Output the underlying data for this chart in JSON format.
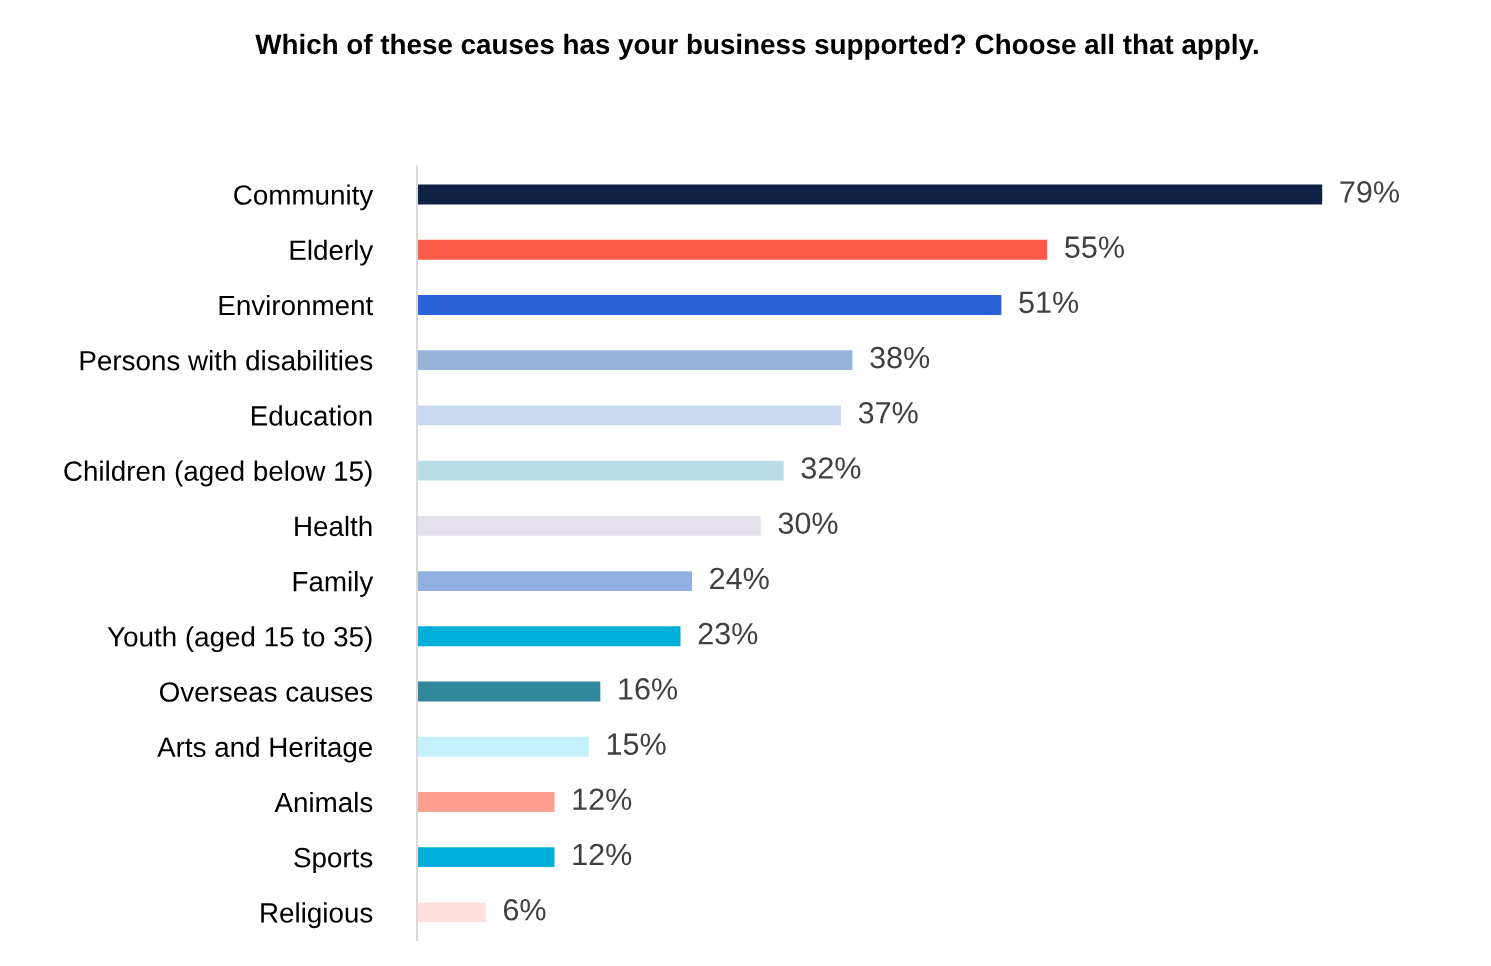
{
  "chart_data": {
    "type": "bar",
    "orientation": "horizontal",
    "title": "Which of these causes has your business supported? Choose all that apply.",
    "categories": [
      "Community",
      "Elderly",
      "Environment",
      "Persons with disabilities",
      "Education",
      "Children (aged below 15)",
      "Health",
      "Family",
      "Youth (aged 15 to 35)",
      "Overseas causes",
      "Arts and Heritage",
      "Animals",
      "Sports",
      "Religious"
    ],
    "values": [
      79,
      55,
      51,
      38,
      37,
      32,
      30,
      24,
      23,
      16,
      15,
      12,
      12,
      6
    ],
    "value_labels": [
      "79%",
      "55%",
      "51%",
      "38%",
      "37%",
      "32%",
      "30%",
      "24%",
      "23%",
      "16%",
      "15%",
      "12%",
      "12%",
      "6%"
    ],
    "colors": [
      "#0f2145",
      "#ff5a47",
      "#2a62d8",
      "#97b3d9",
      "#c9d9f0",
      "#b7dde6",
      "#e4e0ec",
      "#8fb0e0",
      "#00b0d8",
      "#30869a",
      "#c5f1fd",
      "#ff9f8f",
      "#00b0d8",
      "#fde0dc"
    ],
    "grid": false,
    "legend": false,
    "tick_labels": "y"
  }
}
